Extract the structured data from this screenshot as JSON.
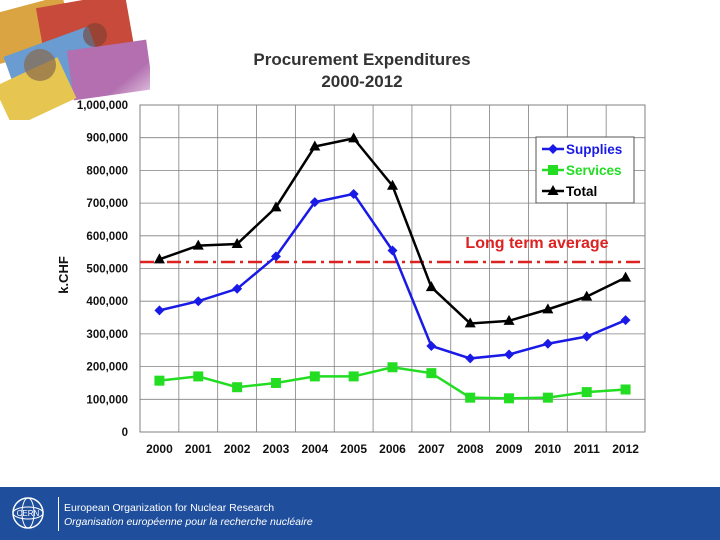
{
  "chart_data": {
    "type": "line",
    "title": "Procurement Expenditures",
    "subtitle": "2000-2012",
    "xlabel": "",
    "ylabel": "k.CHF",
    "categories": [
      "2000",
      "2001",
      "2002",
      "2003",
      "2004",
      "2005",
      "2006",
      "2007",
      "2008",
      "2009",
      "2010",
      "2011",
      "2012"
    ],
    "ylim": [
      0,
      1000000
    ],
    "yticks": [
      0,
      100000,
      200000,
      300000,
      400000,
      500000,
      600000,
      700000,
      800000,
      900000,
      1000000
    ],
    "ytick_labels": [
      "0",
      "100,000",
      "200,000",
      "300,000",
      "400,000",
      "500,000",
      "600,000",
      "700,000",
      "800,000",
      "900,000",
      "1,000,000"
    ],
    "grid": true,
    "legend_position": "top-right",
    "series": [
      {
        "name": "Supplies",
        "color": "#1a1ae6",
        "marker": "diamond",
        "values": [
          372000,
          400000,
          438000,
          537000,
          703000,
          728000,
          555000,
          263000,
          225000,
          237000,
          270000,
          292000,
          342000
        ]
      },
      {
        "name": "Services",
        "color": "#22dd22",
        "marker": "square",
        "values": [
          157000,
          170000,
          137000,
          150000,
          170000,
          170000,
          198000,
          180000,
          105000,
          103000,
          105000,
          122000,
          130000
        ]
      },
      {
        "name": "Total",
        "color": "#000000",
        "marker": "triangle",
        "values": [
          528000,
          570000,
          575000,
          687000,
          873000,
          898000,
          753000,
          443000,
          332000,
          340000,
          375000,
          414000,
          472000
        ]
      }
    ],
    "reference_line": {
      "label": "Long term average",
      "value": 520000,
      "color": "#dd2222"
    }
  },
  "footer": {
    "line1": "European Organization for Nuclear Research",
    "line2": "Organisation européenne pour la recherche nucléaire",
    "logo_text": "CERN"
  },
  "colors": {
    "footer_bg": "#1f4e9c",
    "grid": "#808080"
  }
}
